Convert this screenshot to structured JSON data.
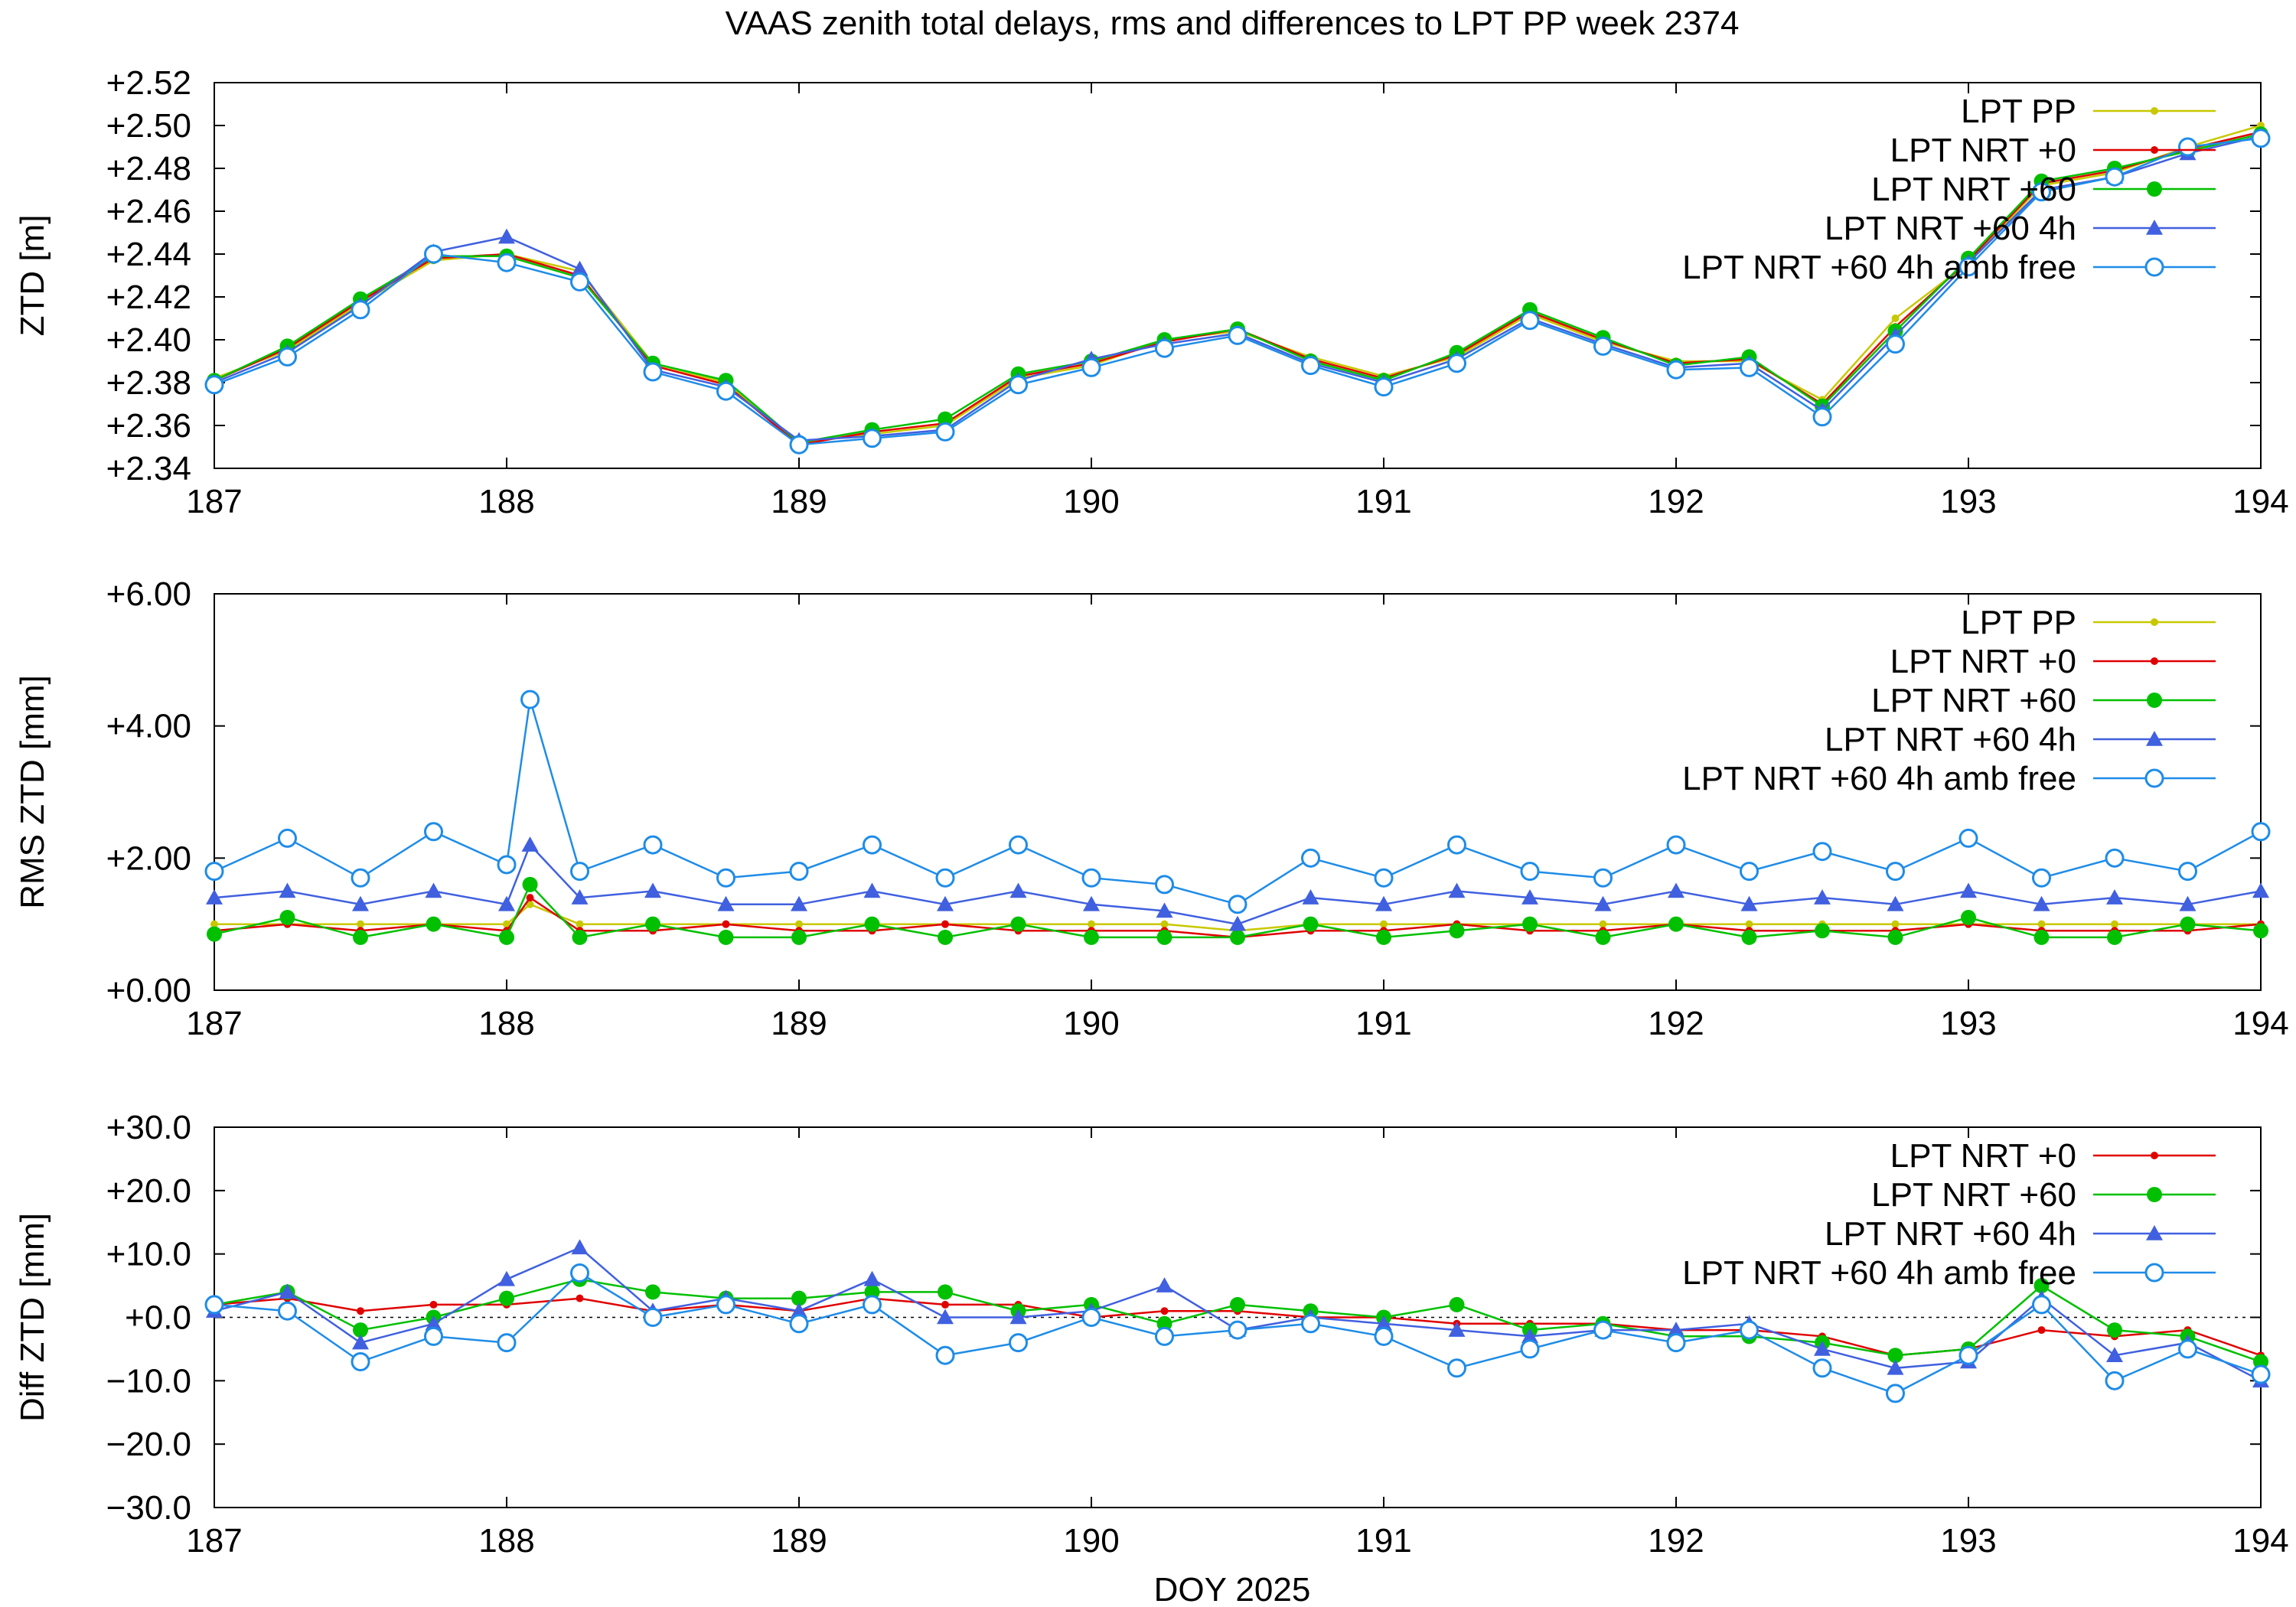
{
  "figure": {
    "title": "VAAS zenith total delays, rms and differences to LPT PP week 2374",
    "xlabel": "DOY 2025"
  },
  "colors": {
    "LPT PP": "#c8c800",
    "LPT NRT +0": "#e00000",
    "LPT NRT +60": "#00c000",
    "LPT NRT +60 4h": "#4060e0",
    "LPT NRT +60 4h amb free": "#1e8ce8"
  },
  "chart_data": [
    {
      "type": "line",
      "ylabel": "ZTD [m]",
      "xlim": [
        187,
        194
      ],
      "ylim": [
        2.34,
        2.52
      ],
      "x_ticks": [
        "187",
        "188",
        "189",
        "190",
        "191",
        "192",
        "193",
        "194"
      ],
      "y_ticks": [
        "+2.34",
        "+2.36",
        "+2.38",
        "+2.40",
        "+2.42",
        "+2.44",
        "+2.46",
        "+2.48",
        "+2.50",
        "+2.52"
      ],
      "zero_line": false,
      "x": [
        187.0,
        187.25,
        187.5,
        187.75,
        188.0,
        188.25,
        188.5,
        188.75,
        189.0,
        189.25,
        189.5,
        189.75,
        190.0,
        190.25,
        190.5,
        190.75,
        191.0,
        191.25,
        191.5,
        191.75,
        192.0,
        192.25,
        192.5,
        192.75,
        193.0,
        193.25,
        193.5,
        193.75,
        194.0
      ],
      "series": [
        {
          "name": "LPT PP",
          "marker": "dot",
          "values": [
            2.382,
            2.395,
            2.417,
            2.437,
            2.44,
            2.432,
            2.389,
            2.38,
            2.352,
            2.356,
            2.36,
            2.382,
            2.388,
            2.4,
            2.404,
            2.392,
            2.383,
            2.392,
            2.412,
            2.399,
            2.39,
            2.39,
            2.372,
            2.41,
            2.436,
            2.472,
            2.478,
            2.49,
            2.5
          ]
        },
        {
          "name": "LPT NRT +0",
          "marker": "dot",
          "values": [
            2.381,
            2.396,
            2.418,
            2.438,
            2.44,
            2.43,
            2.388,
            2.379,
            2.351,
            2.357,
            2.361,
            2.383,
            2.389,
            2.399,
            2.405,
            2.391,
            2.382,
            2.393,
            2.413,
            2.4,
            2.389,
            2.391,
            2.37,
            2.406,
            2.437,
            2.473,
            2.479,
            2.489,
            2.497
          ]
        },
        {
          "name": "LPT NRT +60",
          "marker": "circle-filled",
          "values": [
            2.381,
            2.397,
            2.419,
            2.439,
            2.439,
            2.429,
            2.389,
            2.381,
            2.352,
            2.358,
            2.363,
            2.384,
            2.39,
            2.4,
            2.405,
            2.39,
            2.381,
            2.394,
            2.414,
            2.401,
            2.388,
            2.392,
            2.369,
            2.404,
            2.438,
            2.474,
            2.48,
            2.488,
            2.496
          ]
        },
        {
          "name": "LPT NRT +60 4h",
          "marker": "triangle",
          "values": [
            2.38,
            2.394,
            2.416,
            2.441,
            2.448,
            2.433,
            2.386,
            2.378,
            2.353,
            2.355,
            2.358,
            2.381,
            2.391,
            2.398,
            2.403,
            2.389,
            2.38,
            2.391,
            2.41,
            2.398,
            2.387,
            2.389,
            2.367,
            2.402,
            2.436,
            2.47,
            2.476,
            2.487,
            2.495
          ]
        },
        {
          "name": "LPT NRT +60 4h amb free",
          "marker": "circle-open",
          "values": [
            2.379,
            2.392,
            2.414,
            2.44,
            2.436,
            2.427,
            2.385,
            2.376,
            2.351,
            2.354,
            2.357,
            2.379,
            2.387,
            2.396,
            2.402,
            2.388,
            2.378,
            2.389,
            2.409,
            2.397,
            2.386,
            2.387,
            2.364,
            2.398,
            2.434,
            2.469,
            2.476,
            2.49,
            2.494
          ]
        }
      ]
    },
    {
      "type": "line",
      "ylabel": "RMS ZTD [mm]",
      "xlim": [
        187,
        194
      ],
      "ylim": [
        0,
        6
      ],
      "x_ticks": [
        "187",
        "188",
        "189",
        "190",
        "191",
        "192",
        "193",
        "194"
      ],
      "y_ticks": [
        "+0.00",
        "+2.00",
        "+4.00",
        "+6.00"
      ],
      "zero_line": false,
      "x": [
        187.0,
        187.25,
        187.5,
        187.75,
        188.0,
        188.08,
        188.25,
        188.5,
        188.75,
        189.0,
        189.25,
        189.5,
        189.75,
        190.0,
        190.25,
        190.5,
        190.75,
        191.0,
        191.25,
        191.5,
        191.75,
        192.0,
        192.25,
        192.5,
        192.75,
        193.0,
        193.25,
        193.5,
        193.75,
        194.0
      ],
      "series": [
        {
          "name": "LPT PP",
          "marker": "dot",
          "values": [
            1.0,
            1.0,
            1.0,
            1.0,
            1.0,
            1.3,
            1.0,
            1.0,
            1.0,
            1.0,
            1.0,
            1.0,
            1.0,
            1.0,
            1.0,
            0.9,
            1.0,
            1.0,
            1.0,
            1.0,
            1.0,
            1.0,
            1.0,
            1.0,
            1.0,
            1.0,
            1.0,
            1.0,
            1.0,
            1.0
          ]
        },
        {
          "name": "LPT NRT +0",
          "marker": "dot",
          "values": [
            0.9,
            1.0,
            0.9,
            1.0,
            0.9,
            1.4,
            0.9,
            0.9,
            1.0,
            0.9,
            0.9,
            1.0,
            0.9,
            0.9,
            0.9,
            0.8,
            0.9,
            0.9,
            1.0,
            0.9,
            0.9,
            1.0,
            0.9,
            0.9,
            0.9,
            1.0,
            0.9,
            0.9,
            0.9,
            1.0
          ]
        },
        {
          "name": "LPT NRT +60",
          "marker": "circle-filled",
          "values": [
            0.85,
            1.1,
            0.8,
            1.0,
            0.8,
            1.6,
            0.8,
            1.0,
            0.8,
            0.8,
            1.0,
            0.8,
            1.0,
            0.8,
            0.8,
            0.8,
            1.0,
            0.8,
            0.9,
            1.0,
            0.8,
            1.0,
            0.8,
            0.9,
            0.8,
            1.1,
            0.8,
            0.8,
            1.0,
            0.9
          ]
        },
        {
          "name": "LPT NRT +60 4h",
          "marker": "triangle",
          "values": [
            1.4,
            1.5,
            1.3,
            1.5,
            1.3,
            2.2,
            1.4,
            1.5,
            1.3,
            1.3,
            1.5,
            1.3,
            1.5,
            1.3,
            1.2,
            1.0,
            1.4,
            1.3,
            1.5,
            1.4,
            1.3,
            1.5,
            1.3,
            1.4,
            1.3,
            1.5,
            1.3,
            1.4,
            1.3,
            1.5
          ]
        },
        {
          "name": "LPT NRT +60 4h amb free",
          "marker": "circle-open",
          "values": [
            1.8,
            2.3,
            1.7,
            2.4,
            1.9,
            4.4,
            1.8,
            2.2,
            1.7,
            1.8,
            2.2,
            1.7,
            2.2,
            1.7,
            1.6,
            1.3,
            2.0,
            1.7,
            2.2,
            1.8,
            1.7,
            2.2,
            1.8,
            2.1,
            1.8,
            2.3,
            1.7,
            2.0,
            1.8,
            2.4
          ]
        }
      ]
    },
    {
      "type": "line",
      "ylabel": "Diff ZTD [mm]",
      "xlim": [
        187,
        194
      ],
      "ylim": [
        -30,
        30
      ],
      "x_ticks": [
        "187",
        "188",
        "189",
        "190",
        "191",
        "192",
        "193",
        "194"
      ],
      "y_ticks": [
        "−30.0",
        "−20.0",
        "−10.0",
        "+0.0",
        "+10.0",
        "+20.0",
        "+30.0"
      ],
      "zero_line": true,
      "x": [
        187.0,
        187.25,
        187.5,
        187.75,
        188.0,
        188.25,
        188.5,
        188.75,
        189.0,
        189.25,
        189.5,
        189.75,
        190.0,
        190.25,
        190.5,
        190.75,
        191.0,
        191.25,
        191.5,
        191.75,
        192.0,
        192.25,
        192.5,
        192.75,
        193.0,
        193.25,
        193.5,
        193.75,
        194.0
      ],
      "series": [
        {
          "name": "LPT NRT +0",
          "marker": "dot",
          "values": [
            2,
            3,
            1,
            2,
            2,
            3,
            1,
            2,
            1,
            3,
            2,
            2,
            0,
            1,
            1,
            0,
            0,
            -1,
            -1,
            -1,
            -2,
            -2,
            -3,
            -6,
            -5,
            -2,
            -3,
            -2,
            -6
          ]
        },
        {
          "name": "LPT NRT +60",
          "marker": "circle-filled",
          "values": [
            2,
            4,
            -2,
            0,
            3,
            6,
            4,
            3,
            3,
            4,
            4,
            1,
            2,
            -1,
            2,
            1,
            0,
            2,
            -2,
            -1,
            -3,
            -3,
            -4,
            -6,
            -5,
            5,
            -2,
            -3,
            -7
          ]
        },
        {
          "name": "LPT NRT +60 4h",
          "marker": "triangle",
          "values": [
            1,
            4,
            -4,
            -1,
            6,
            11,
            1,
            3,
            1,
            6,
            0,
            0,
            1,
            5,
            -2,
            0,
            -1,
            -2,
            -3,
            -2,
            -2,
            -1,
            -5,
            -8,
            -7,
            3,
            -6,
            -4,
            -10
          ]
        },
        {
          "name": "LPT NRT +60 4h amb free",
          "marker": "circle-open",
          "values": [
            2,
            1,
            -7,
            -3,
            -4,
            7,
            0,
            2,
            -1,
            2,
            -6,
            -4,
            0,
            -3,
            -2,
            -1,
            -3,
            -8,
            -5,
            -2,
            -4,
            -2,
            -8,
            -12,
            -6,
            2,
            -10,
            -5,
            -9
          ]
        }
      ]
    }
  ]
}
